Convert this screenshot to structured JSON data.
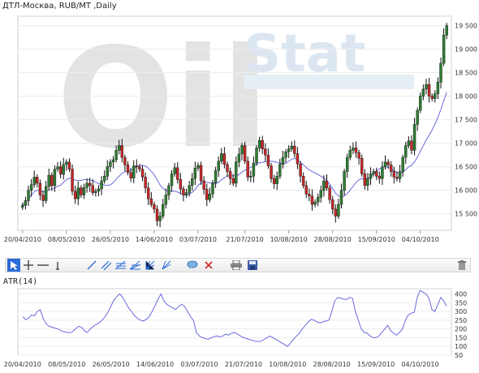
{
  "header": {
    "title": "ДТЛ-Москва,  RUB/MT ,Daily"
  },
  "watermark": {
    "text_a": "Oil",
    "text_b": "Stat"
  },
  "colors": {
    "up": "#2e7d32",
    "down": "#c62828",
    "ma": "#6a6ae0",
    "atr": "#6a6ae0",
    "grid": "#ececec",
    "select": "#2a6ad8"
  },
  "toolbar": {
    "tools": [
      {
        "name": "pointer-tool-icon"
      },
      {
        "name": "crosshair-tool-icon"
      },
      {
        "name": "horizontal-line-tool-icon"
      },
      {
        "name": "vertical-line-tool-icon"
      },
      {
        "name": "trend-line-tool-icon"
      },
      {
        "name": "channel-tool-icon"
      },
      {
        "name": "fibonacci-tool-icon"
      },
      {
        "name": "fan-tool-icon"
      },
      {
        "name": "gann-tool-icon"
      },
      {
        "name": "comment-tool-icon"
      },
      {
        "name": "delete-object-icon"
      },
      {
        "name": "print-icon"
      },
      {
        "name": "save-icon"
      },
      {
        "name": "trash-icon"
      }
    ]
  },
  "indicator": {
    "title": "ATR(14)"
  },
  "chart_data": [
    {
      "type": "candlestick",
      "title": "ДТЛ-Москва,  RUB/MT ,Daily",
      "x_tick_labels": [
        "20/04/2010",
        "08/05/2010",
        "26/05/2010",
        "14/06/2010",
        "03/07/2010",
        "21/07/2010",
        "10/08/2010",
        "28/08/2010",
        "15/09/2010",
        "04/10/2010"
      ],
      "y_ticks": [
        15500,
        16000,
        16500,
        17000,
        17500,
        18000,
        18500,
        19000,
        19500
      ],
      "y_tick_labels": [
        "15 500",
        "16 000",
        "16 500",
        "17 000",
        "17 500",
        "18 000",
        "18 500",
        "19 000",
        "19 500"
      ],
      "ylim": [
        15150,
        19700
      ],
      "grid": true,
      "close": [
        15680,
        15780,
        16000,
        16120,
        16280,
        16150,
        15900,
        15780,
        16080,
        16320,
        16100,
        16450,
        16500,
        16340,
        16550,
        16600,
        16450,
        15980,
        15820,
        16050,
        15900,
        16060,
        16150,
        16100,
        15950,
        15980,
        16030,
        16200,
        16300,
        16500,
        16600,
        16650,
        16850,
        16950,
        16700,
        16540,
        16380,
        16260,
        16520,
        16500,
        16450,
        16280,
        16050,
        15820,
        15700,
        15600,
        15350,
        15450,
        15700,
        15900,
        16100,
        16350,
        16480,
        16230,
        16030,
        15900,
        15950,
        16100,
        16250,
        16470,
        16530,
        16200,
        16020,
        15800,
        15920,
        16160,
        16420,
        16620,
        16780,
        16550,
        16400,
        16250,
        16150,
        16600,
        16770,
        16950,
        16620,
        16280,
        16300,
        16580,
        16900,
        17060,
        16880,
        16750,
        16520,
        16250,
        16140,
        16300,
        16550,
        16700,
        16820,
        16880,
        16940,
        16780,
        16560,
        16300,
        16100,
        15920,
        15880,
        15700,
        15750,
        15850,
        16000,
        16200,
        16050,
        15800,
        15600,
        15450,
        15700,
        16000,
        16400,
        16700,
        16850,
        16900,
        16800,
        16680,
        16350,
        16100,
        16250,
        16350,
        16400,
        16300,
        16250,
        16500,
        16600,
        16540,
        16400,
        16280,
        16250,
        16400,
        16700,
        16950,
        17050,
        16850,
        17400,
        17700,
        18000,
        18150,
        18250,
        18000,
        17950,
        18050,
        18300,
        18700,
        19300,
        19500
      ],
      "ma_period": 14
    },
    {
      "type": "line",
      "title": "ATR(14)",
      "y_ticks": [
        50,
        100,
        150,
        200,
        250,
        300,
        350,
        400
      ],
      "ylim": [
        50,
        430
      ],
      "x_tick_labels": [
        "20/04/2010",
        "08/05/2010",
        "26/05/2010",
        "14/06/2010",
        "03/07/2010",
        "21/07/2010",
        "10/08/2010",
        "28/08/2010",
        "15/09/2010",
        "04/10/2010"
      ],
      "values": [
        270,
        255,
        260,
        280,
        275,
        300,
        310,
        260,
        230,
        215,
        210,
        205,
        200,
        190,
        185,
        180,
        178,
        185,
        200,
        215,
        210,
        190,
        180,
        200,
        215,
        225,
        235,
        250,
        270,
        295,
        330,
        365,
        385,
        400,
        380,
        350,
        320,
        300,
        275,
        260,
        250,
        245,
        255,
        270,
        300,
        335,
        370,
        400,
        360,
        340,
        330,
        320,
        310,
        330,
        340,
        330,
        300,
        270,
        250,
        180,
        160,
        150,
        145,
        140,
        150,
        155,
        160,
        155,
        160,
        170,
        165,
        175,
        180,
        170,
        160,
        150,
        145,
        140,
        135,
        130,
        128,
        130,
        140,
        150,
        160,
        150,
        140,
        130,
        120,
        110,
        100,
        120,
        140,
        160,
        175,
        200,
        220,
        240,
        255,
        250,
        240,
        235,
        240,
        245,
        250,
        300,
        360,
        380,
        375,
        370,
        368,
        380,
        376,
        300,
        250,
        200,
        180,
        175,
        160,
        150,
        150,
        160,
        180,
        200,
        220,
        190,
        175,
        165,
        180,
        200,
        250,
        280,
        290,
        295,
        380,
        420,
        410,
        400,
        375,
        310,
        300,
        340,
        380,
        360,
        330
      ]
    }
  ]
}
